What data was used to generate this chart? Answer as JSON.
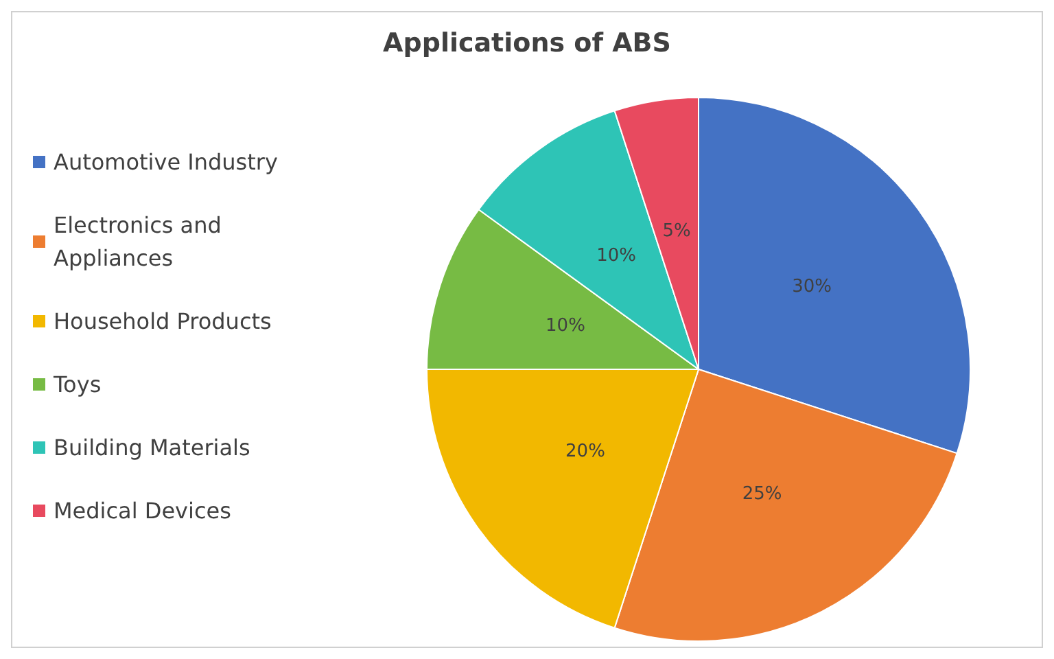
{
  "chart_data": {
    "type": "pie",
    "title": "Applications of ABS",
    "categories": [
      "Automotive Industry",
      "Electronics and Appliances",
      "Household Products",
      "Toys",
      "Building Materials",
      "Medical Devices"
    ],
    "values": [
      30,
      25,
      20,
      10,
      10,
      5
    ],
    "colors": [
      "#4472c4",
      "#ed7d31",
      "#f2b800",
      "#77bb44",
      "#2ec4b6",
      "#e84a5f"
    ],
    "value_labels": [
      "30%",
      "25%",
      "20%",
      "10%",
      "10%",
      "5%"
    ],
    "legend": "left"
  }
}
